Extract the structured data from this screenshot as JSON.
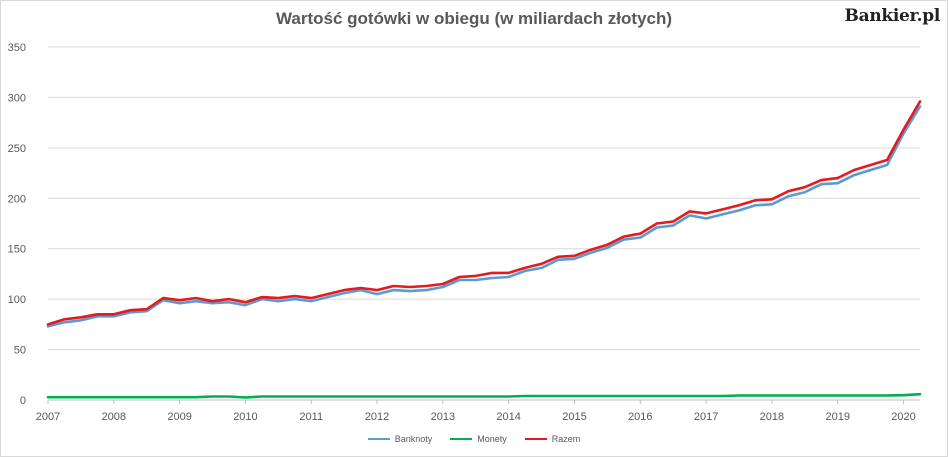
{
  "header": {
    "title": "Wartość gotówki w obiegu (w miliardach złotych)",
    "brand": "Bankier.pl"
  },
  "chart_data": {
    "type": "line",
    "title": "Wartość gotówki w obiegu (w miliardach złotych)",
    "xlabel": "",
    "ylabel": "",
    "xlim": [
      2007,
      2020.25
    ],
    "ylim": [
      0,
      350
    ],
    "yticks": [
      0,
      50,
      100,
      150,
      200,
      250,
      300,
      350
    ],
    "xticks": [
      "2007",
      "2008",
      "2009",
      "2010",
      "2011",
      "2012",
      "2013",
      "2014",
      "2015",
      "2016",
      "2017",
      "2018",
      "2019",
      "2020"
    ],
    "grid": "horizontal",
    "legend_position": "bottom",
    "x": [
      2007.0,
      2007.25,
      2007.5,
      2007.75,
      2008.0,
      2008.25,
      2008.5,
      2008.75,
      2009.0,
      2009.25,
      2009.5,
      2009.75,
      2010.0,
      2010.25,
      2010.5,
      2010.75,
      2011.0,
      2011.25,
      2011.5,
      2011.75,
      2012.0,
      2012.25,
      2012.5,
      2012.75,
      2013.0,
      2013.25,
      2013.5,
      2013.75,
      2014.0,
      2014.25,
      2014.5,
      2014.75,
      2015.0,
      2015.25,
      2015.5,
      2015.75,
      2016.0,
      2016.25,
      2016.5,
      2016.75,
      2017.0,
      2017.25,
      2017.5,
      2017.75,
      2018.0,
      2018.25,
      2018.5,
      2018.75,
      2019.0,
      2019.25,
      2019.5,
      2019.75,
      2020.0,
      2020.25
    ],
    "series": [
      {
        "name": "Banknoty",
        "color": "#5b9bd5",
        "values": [
          73,
          77,
          79,
          83,
          83,
          87,
          88,
          99,
          96,
          98,
          96,
          97,
          94,
          100,
          98,
          100,
          98,
          102,
          106,
          109,
          105,
          109,
          108,
          109,
          112,
          119,
          119,
          121,
          122,
          128,
          131,
          139,
          140,
          146,
          151,
          159,
          161,
          171,
          173,
          183,
          180,
          184,
          188,
          193,
          194,
          202,
          206,
          214,
          215,
          223,
          228,
          233,
          264,
          291
        ]
      },
      {
        "name": "Monety",
        "color": "#00b050",
        "values": [
          2.8,
          2.8,
          2.8,
          2.8,
          2.8,
          2.8,
          2.8,
          2.8,
          2.8,
          2.8,
          3.5,
          3.5,
          2.5,
          3.5,
          3.5,
          3.5,
          3.5,
          3.5,
          3.5,
          3.5,
          3.5,
          3.5,
          3.5,
          3.5,
          3.5,
          3.5,
          3.5,
          3.5,
          3.5,
          4.0,
          4.0,
          4.0,
          4.0,
          4.0,
          4.0,
          4.0,
          4.0,
          4.0,
          4.0,
          4.0,
          4.0,
          4.0,
          4.5,
          4.5,
          4.5,
          4.5,
          4.5,
          4.5,
          4.5,
          4.5,
          4.5,
          4.5,
          4.8,
          5.8
        ]
      },
      {
        "name": "Razem",
        "color": "#e41a1c",
        "values": [
          75,
          80,
          82,
          85,
          85,
          89,
          90,
          101,
          99,
          101,
          98,
          100,
          97,
          102,
          101,
          103,
          101,
          105,
          109,
          111,
          109,
          113,
          112,
          113,
          115,
          122,
          123,
          126,
          126,
          131,
          135,
          142,
          143,
          149,
          154,
          162,
          165,
          175,
          177,
          187,
          185,
          189,
          193,
          198,
          199,
          207,
          211,
          218,
          220,
          228,
          233,
          238,
          268,
          296
        ]
      }
    ]
  }
}
